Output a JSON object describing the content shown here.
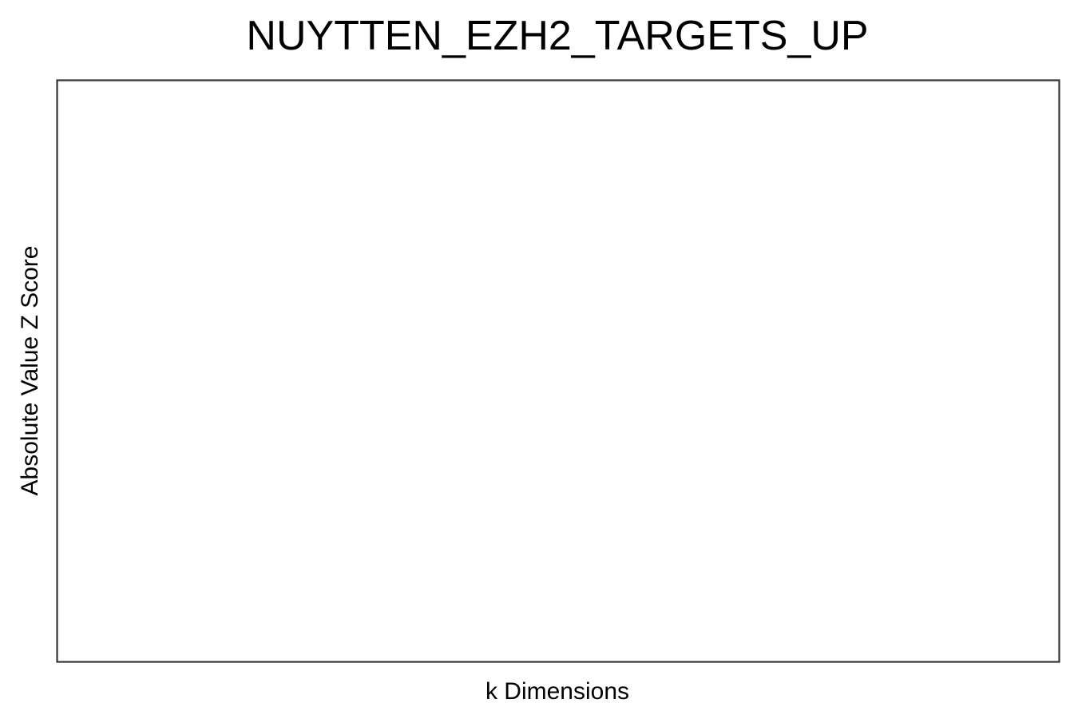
{
  "chart_data": {
    "type": "scatter",
    "title": "NUYTTEN_EZH2_TARGETS_UP",
    "xlabel": "k Dimensions",
    "ylabel": "Absolute Value Z Score",
    "series": [],
    "grid": false,
    "legend": "none"
  },
  "colors": {
    "frame": "#333333",
    "background": "#ffffff",
    "text": "#000000"
  }
}
